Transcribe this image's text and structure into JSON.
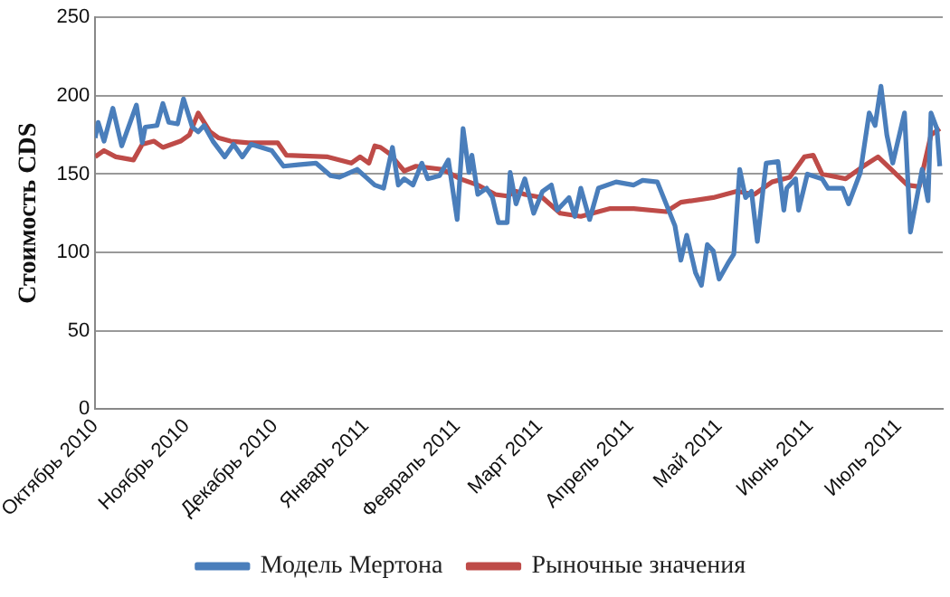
{
  "chart_data": {
    "type": "line",
    "ylabel": "Стоимость CDS",
    "ylim": [
      0,
      250
    ],
    "yticks": [
      0,
      50,
      100,
      150,
      200,
      250
    ],
    "xlim": [
      "2010-10-01",
      "2011-07-16"
    ],
    "xticks": [
      {
        "value": "2010-10-01",
        "label": "Октябрь 2010"
      },
      {
        "value": "2010-11-01",
        "label": "Ноябрь 2010"
      },
      {
        "value": "2010-12-01",
        "label": "Декабрь 2010"
      },
      {
        "value": "2011-01-01",
        "label": "Январь 2011"
      },
      {
        "value": "2011-02-01",
        "label": "Февраль 2011"
      },
      {
        "value": "2011-03-01",
        "label": "Март 2011"
      },
      {
        "value": "2011-04-01",
        "label": "Апрель 2011"
      },
      {
        "value": "2011-05-01",
        "label": "Май 2011"
      },
      {
        "value": "2011-06-01",
        "label": "Июнь 2011"
      },
      {
        "value": "2011-07-01",
        "label": "Июль 2011"
      }
    ],
    "grid": "y",
    "legend": "bottom",
    "marker": "none",
    "line_style": "solid",
    "series": [
      {
        "name": "Модель Мертона",
        "color": "#4a7ebb",
        "x": [
          "2010-10-01",
          "2010-10-02",
          "2010-10-04",
          "2010-10-07",
          "2010-10-10",
          "2010-10-15",
          "2010-10-17",
          "2010-10-18",
          "2010-10-22",
          "2010-10-24",
          "2010-10-26",
          "2010-10-29",
          "2010-10-31",
          "2010-11-03",
          "2010-11-05",
          "2010-11-07",
          "2010-11-10",
          "2010-11-14",
          "2010-11-17",
          "2010-11-20",
          "2010-11-23",
          "2010-11-30",
          "2010-12-04",
          "2010-12-09",
          "2010-12-15",
          "2010-12-20",
          "2010-12-23",
          "2010-12-29",
          "2011-01-01",
          "2011-01-04",
          "2011-01-07",
          "2011-01-10",
          "2011-01-12",
          "2011-01-14",
          "2011-01-17",
          "2011-01-20",
          "2011-01-22",
          "2011-01-26",
          "2011-01-29",
          "2011-02-01",
          "2011-02-03",
          "2011-02-05",
          "2011-02-06",
          "2011-02-08",
          "2011-02-11",
          "2011-02-13",
          "2011-02-15",
          "2011-02-18",
          "2011-02-19",
          "2011-02-21",
          "2011-02-24",
          "2011-02-27",
          "2011-03-02",
          "2011-03-05",
          "2011-03-07",
          "2011-03-11",
          "2011-03-13",
          "2011-03-15",
          "2011-03-18",
          "2011-03-21",
          "2011-03-27",
          "2011-04-02",
          "2011-04-05",
          "2011-04-10",
          "2011-04-13",
          "2011-04-16",
          "2011-04-18",
          "2011-04-20",
          "2011-04-23",
          "2011-04-25",
          "2011-04-27",
          "2011-04-29",
          "2011-05-01",
          "2011-05-04",
          "2011-05-06",
          "2011-05-08",
          "2011-05-10",
          "2011-05-12",
          "2011-05-14",
          "2011-05-16",
          "2011-05-17",
          "2011-05-21",
          "2011-05-23",
          "2011-05-24",
          "2011-05-27",
          "2011-05-28",
          "2011-05-31",
          "2011-06-05",
          "2011-06-07",
          "2011-06-12",
          "2011-06-14",
          "2011-06-18",
          "2011-06-21",
          "2011-06-23",
          "2011-06-25",
          "2011-06-27",
          "2011-06-29",
          "2011-07-03",
          "2011-07-05",
          "2011-07-09",
          "2011-07-11",
          "2011-07-12",
          "2011-07-14",
          "2011-07-15"
        ],
        "values": [
          173,
          183,
          171,
          192,
          168,
          194,
          170,
          180,
          181,
          195,
          183,
          182,
          198,
          180,
          177,
          181,
          171,
          161,
          169,
          161,
          169,
          165,
          155,
          156,
          157,
          149,
          148,
          153,
          148,
          143,
          141,
          167,
          143,
          147,
          143,
          157,
          147,
          149,
          159,
          121,
          179,
          151,
          162,
          137,
          141,
          135,
          119,
          119,
          151,
          131,
          147,
          125,
          139,
          143,
          127,
          135,
          123,
          141,
          121,
          141,
          145,
          143,
          146,
          145,
          131,
          117,
          95,
          111,
          87,
          79,
          105,
          101,
          83,
          93,
          99,
          153,
          135,
          139,
          107,
          141,
          157,
          158,
          127,
          141,
          147,
          127,
          150,
          147,
          141,
          141,
          131,
          151,
          189,
          181,
          206,
          175,
          157,
          189,
          113,
          153,
          133,
          189,
          179,
          155
        ]
      },
      {
        "name": "Рыночные значения",
        "color": "#be4b48",
        "x": [
          "2010-10-01",
          "2010-10-04",
          "2010-10-08",
          "2010-10-14",
          "2010-10-17",
          "2010-10-21",
          "2010-10-24",
          "2010-10-30",
          "2010-11-02",
          "2010-11-05",
          "2010-11-09",
          "2010-11-12",
          "2010-11-16",
          "2010-11-22",
          "2010-12-02",
          "2010-12-05",
          "2010-12-19",
          "2010-12-27",
          "2010-12-30",
          "2011-01-02",
          "2011-01-04",
          "2011-01-06",
          "2011-01-09",
          "2011-01-14",
          "2011-01-18",
          "2011-01-27",
          "2011-02-02",
          "2011-02-08",
          "2011-02-14",
          "2011-02-18",
          "2011-02-21",
          "2011-02-24",
          "2011-03-02",
          "2011-03-08",
          "2011-03-15",
          "2011-03-19",
          "2011-03-25",
          "2011-04-02",
          "2011-04-13",
          "2011-04-18",
          "2011-04-29",
          "2011-05-07",
          "2011-05-13",
          "2011-05-19",
          "2011-05-25",
          "2011-05-30",
          "2011-06-02",
          "2011-06-05",
          "2011-06-13",
          "2011-06-19",
          "2011-06-24",
          "2011-06-29",
          "2011-07-04",
          "2011-07-08",
          "2011-07-12",
          "2011-07-15"
        ],
        "values": [
          161,
          165,
          161,
          159,
          169,
          171,
          167,
          171,
          175,
          189,
          177,
          173,
          171,
          170,
          170,
          162,
          161,
          157,
          161,
          157,
          168,
          167,
          163,
          152,
          155,
          153,
          147,
          143,
          137,
          136,
          139,
          137,
          135,
          125,
          123,
          125,
          128,
          128,
          126,
          132,
          135,
          139,
          137,
          145,
          148,
          161,
          162,
          150,
          147,
          155,
          161,
          152,
          143,
          142,
          175,
          179
        ]
      }
    ]
  }
}
